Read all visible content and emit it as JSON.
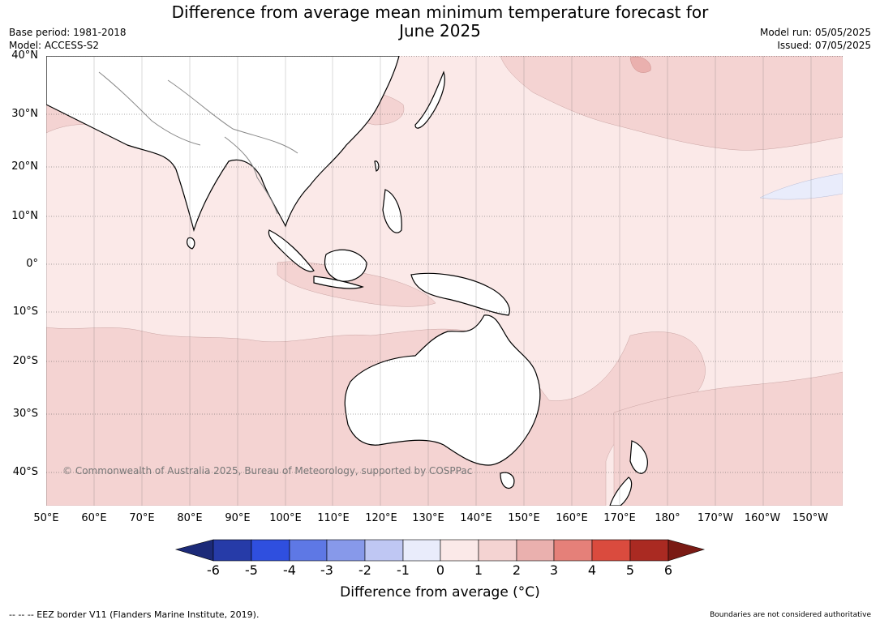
{
  "title": {
    "line1": "Difference from average mean minimum temperature forecast for",
    "line2": "June 2025"
  },
  "meta": {
    "base_period": "Base period: 1981-2018",
    "model": "Model: ACCESS-S2",
    "model_run": "Model run: 05/05/2025",
    "issued": "Issued: 07/05/2025"
  },
  "map": {
    "lat_labels": [
      "40°N",
      "30°N",
      "20°N",
      "10°N",
      "0°",
      "10°S",
      "20°S",
      "30°S",
      "40°S"
    ],
    "lon_labels": [
      "50°E",
      "60°E",
      "70°E",
      "80°E",
      "90°E",
      "100°E",
      "110°E",
      "120°E",
      "130°E",
      "140°E",
      "150°E",
      "160°E",
      "170°E",
      "180°",
      "170°W",
      "160°W",
      "150°W"
    ],
    "copyright": "© Commonwealth of Australia 2025, Bureau of Meteorology, supported by COSPPac",
    "land_color": "#ffffff",
    "anomaly_colors": {
      "0_to_1": "#fbe9e8",
      "1_to_2": "#f4d3d2",
      "2_to_3": "#eab0ae",
      "minus1_to_0": "#e9ecfb"
    }
  },
  "colorbar": {
    "colors": [
      "#1c2a78",
      "#263ba8",
      "#2f4fdf",
      "#5e78e5",
      "#8799ea",
      "#bfc7f3",
      "#e9ecfb",
      "#fbe9e8",
      "#f4d3d2",
      "#eab0ae",
      "#e58079",
      "#da4b3e",
      "#aa2a22",
      "#7a1a14"
    ],
    "ticks": [
      "-6",
      "-5",
      "-4",
      "-3",
      "-2",
      "-1",
      "0",
      "1",
      "2",
      "3",
      "4",
      "5",
      "6"
    ],
    "label": "Difference from average (°C)"
  },
  "footer": {
    "eez_legend": "-- -- -- EEZ border V11 (Flanders Marine Institute, 2019).",
    "disclaimer": "Boundaries are not considered authoritative"
  }
}
